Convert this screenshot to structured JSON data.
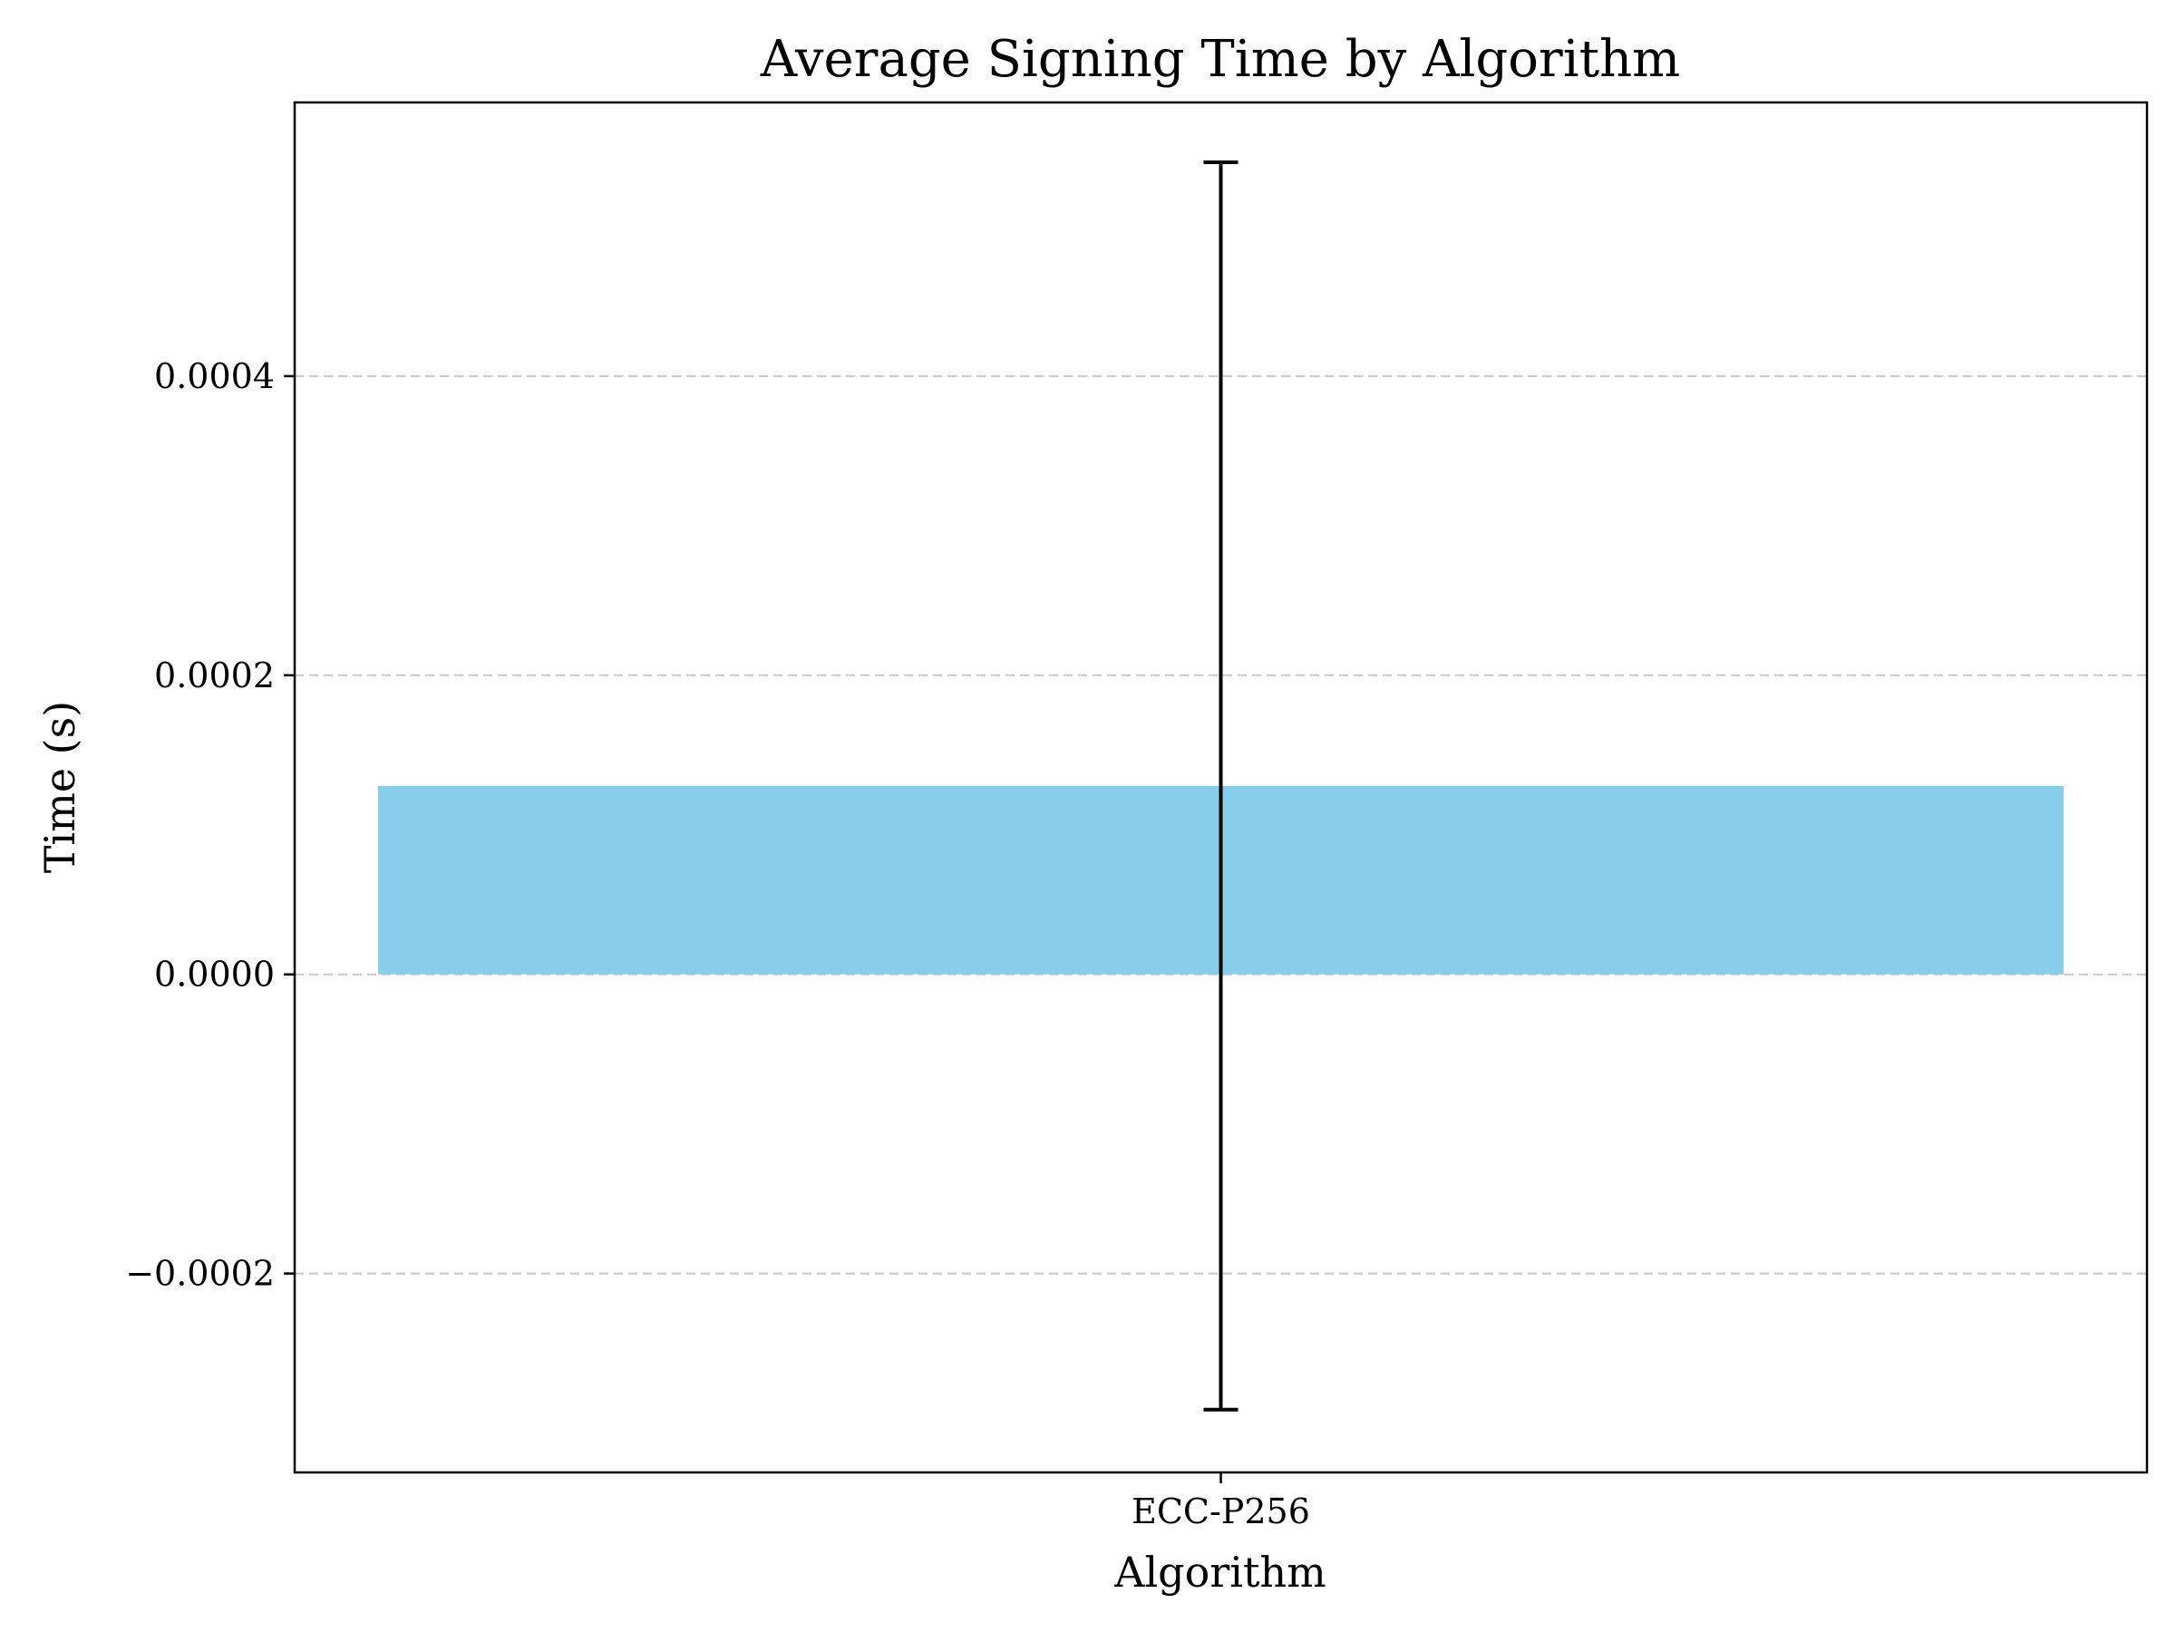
{
  "chart_data": {
    "type": "bar",
    "title": "Average Signing Time by Algorithm",
    "xlabel": "Algorithm",
    "ylabel": "Time (s)",
    "categories": [
      "ECC-P256"
    ],
    "values": [
      0.000126
    ],
    "error": [
      0.000417
    ],
    "ylim": [
      -0.000333,
      0.000583
    ],
    "yticks": [
      -0.0002,
      0,
      0.0002,
      0.0004
    ],
    "ytick_labels": [
      "−0.0002",
      "0.0000",
      "0.0002",
      "0.0004"
    ],
    "grid": {
      "axis": "y",
      "style": "dashed",
      "color": "#c8c8c8"
    },
    "bar_color": "#87ceeb",
    "errorbar_color": "#000000"
  }
}
